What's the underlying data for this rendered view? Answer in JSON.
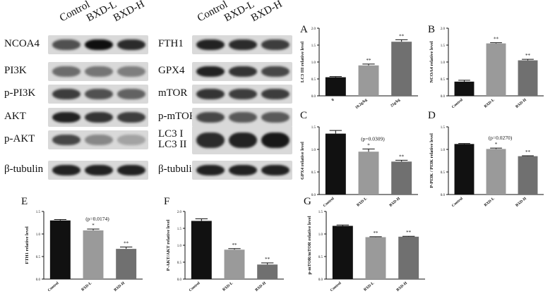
{
  "blots": {
    "left": {
      "lanes": [
        "Control",
        "BXD-L",
        "BXD-H"
      ],
      "rows": [
        {
          "label": "NCOA4",
          "intensity": [
            0.65,
            1.0,
            0.85
          ]
        },
        {
          "label": "PI3K",
          "intensity": [
            0.5,
            0.45,
            0.4
          ]
        },
        {
          "label": "p-PI3K",
          "intensity": [
            0.75,
            0.65,
            0.55
          ]
        },
        {
          "label": "AKT",
          "intensity": [
            0.9,
            0.8,
            0.75
          ]
        },
        {
          "label": "p-AKT",
          "intensity": [
            0.7,
            0.35,
            0.2
          ]
        },
        {
          "label": "β-tubulin",
          "intensity": [
            0.9,
            0.9,
            0.9
          ]
        }
      ]
    },
    "right": {
      "lanes": [
        "Control",
        "BXD-L",
        "BXD-H"
      ],
      "rows": [
        {
          "label": "FTH1",
          "intensity": [
            0.9,
            0.85,
            0.75
          ]
        },
        {
          "label": "GPX4",
          "intensity": [
            0.9,
            0.8,
            0.7
          ]
        },
        {
          "label": "mTOR",
          "intensity": [
            0.8,
            0.75,
            0.75
          ]
        },
        {
          "label": "p-mTOR",
          "intensity": [
            0.7,
            0.6,
            0.6
          ]
        },
        {
          "label": "LC3 I\nLC3 II",
          "intensity": [
            0.85,
            0.9,
            0.95
          ]
        },
        {
          "label": "β-tubulin",
          "intensity": [
            0.9,
            0.9,
            0.9
          ]
        }
      ]
    }
  },
  "chart_data": [
    {
      "panel": "A",
      "type": "bar",
      "categories": [
        "0",
        "10.2g/kg",
        "21g/kg"
      ],
      "values": [
        0.55,
        0.9,
        1.6
      ],
      "errors": [
        0.02,
        0.04,
        0.06
      ],
      "sig": [
        "",
        "**",
        "**"
      ],
      "ylabel": "LC3 III relative level",
      "ylim": [
        0,
        2.0
      ],
      "yticks": [
        "0.0",
        "0.5",
        "1.0",
        "1.5",
        "2.0"
      ],
      "pnote": "",
      "colors": [
        "#111111",
        "#9a9a9a",
        "#707070"
      ]
    },
    {
      "panel": "B",
      "type": "bar",
      "categories": [
        "Control",
        "BXD-L",
        "BXD-H"
      ],
      "values": [
        0.42,
        1.55,
        1.05
      ],
      "errors": [
        0.04,
        0.02,
        0.03
      ],
      "sig": [
        "",
        "**",
        "**"
      ],
      "ylabel": "NCOA4 relative level",
      "ylim": [
        0,
        2.0
      ],
      "yticks": [
        "0.0",
        "0.5",
        "1.0",
        "1.5",
        "2.0"
      ],
      "pnote": "",
      "colors": [
        "#111111",
        "#9a9a9a",
        "#707070"
      ]
    },
    {
      "panel": "C",
      "type": "bar",
      "categories": [
        "Control",
        "BXD-L",
        "BXD-H"
      ],
      "values": [
        1.35,
        0.95,
        0.73
      ],
      "errors": [
        0.07,
        0.06,
        0.03
      ],
      "sig": [
        "",
        "*",
        "**"
      ],
      "ylabel": "GPX4 relative level",
      "ylim": [
        0,
        1.5
      ],
      "yticks": [
        "0.0",
        "0.5",
        "1.0",
        "1.5"
      ],
      "pnote": "(p=0.0309)",
      "colors": [
        "#111111",
        "#9a9a9a",
        "#707070"
      ]
    },
    {
      "panel": "D",
      "type": "bar",
      "categories": [
        "Control",
        "BXD-L",
        "BXD-H"
      ],
      "values": [
        1.12,
        1.01,
        0.85
      ],
      "errors": [
        0.01,
        0.02,
        0.01
      ],
      "sig": [
        "",
        "*",
        "**"
      ],
      "ylabel": "P-PI3K / PI3K relative level",
      "ylim": [
        0,
        1.5
      ],
      "yticks": [
        "0.0",
        "0.5",
        "1.0",
        "1.5"
      ],
      "pnote": "(p=0.0270)",
      "colors": [
        "#111111",
        "#9a9a9a",
        "#707070"
      ]
    },
    {
      "panel": "E",
      "type": "bar",
      "categories": [
        "Control",
        "BXD-L",
        "BXD-H"
      ],
      "values": [
        1.3,
        1.08,
        0.67
      ],
      "errors": [
        0.02,
        0.03,
        0.04
      ],
      "sig": [
        "",
        "*",
        "**"
      ],
      "ylabel": "FTH1 relative level",
      "ylim": [
        0,
        1.5
      ],
      "yticks": [
        "0.0",
        "0.5",
        "1.0",
        "1.5"
      ],
      "pnote": "(p=0.0174)",
      "colors": [
        "#111111",
        "#9a9a9a",
        "#707070"
      ]
    },
    {
      "panel": "F",
      "type": "bar",
      "categories": [
        "Control",
        "BXD-L",
        "BXD-H"
      ],
      "values": [
        1.72,
        0.87,
        0.43
      ],
      "errors": [
        0.06,
        0.03,
        0.05
      ],
      "sig": [
        "",
        "**",
        "**"
      ],
      "ylabel": "P-AKT/AKT relative level",
      "ylim": [
        0,
        2.0
      ],
      "yticks": [
        "0.0",
        "0.5",
        "1.0",
        "1.5",
        "2.0"
      ],
      "pnote": "",
      "colors": [
        "#111111",
        "#9a9a9a",
        "#707070"
      ]
    },
    {
      "panel": "G",
      "type": "bar",
      "categories": [
        "Control",
        "BXD-L",
        "BXD-H"
      ],
      "values": [
        1.18,
        0.93,
        0.94
      ],
      "errors": [
        0.02,
        0.01,
        0.01
      ],
      "sig": [
        "",
        "**",
        "**"
      ],
      "ylabel": "p-mTOR/mTOR relative level",
      "ylim": [
        0,
        1.5
      ],
      "yticks": [
        "0.0",
        "0.5",
        "1.0",
        "1.5"
      ],
      "pnote": "",
      "colors": [
        "#111111",
        "#9a9a9a",
        "#707070"
      ]
    }
  ]
}
